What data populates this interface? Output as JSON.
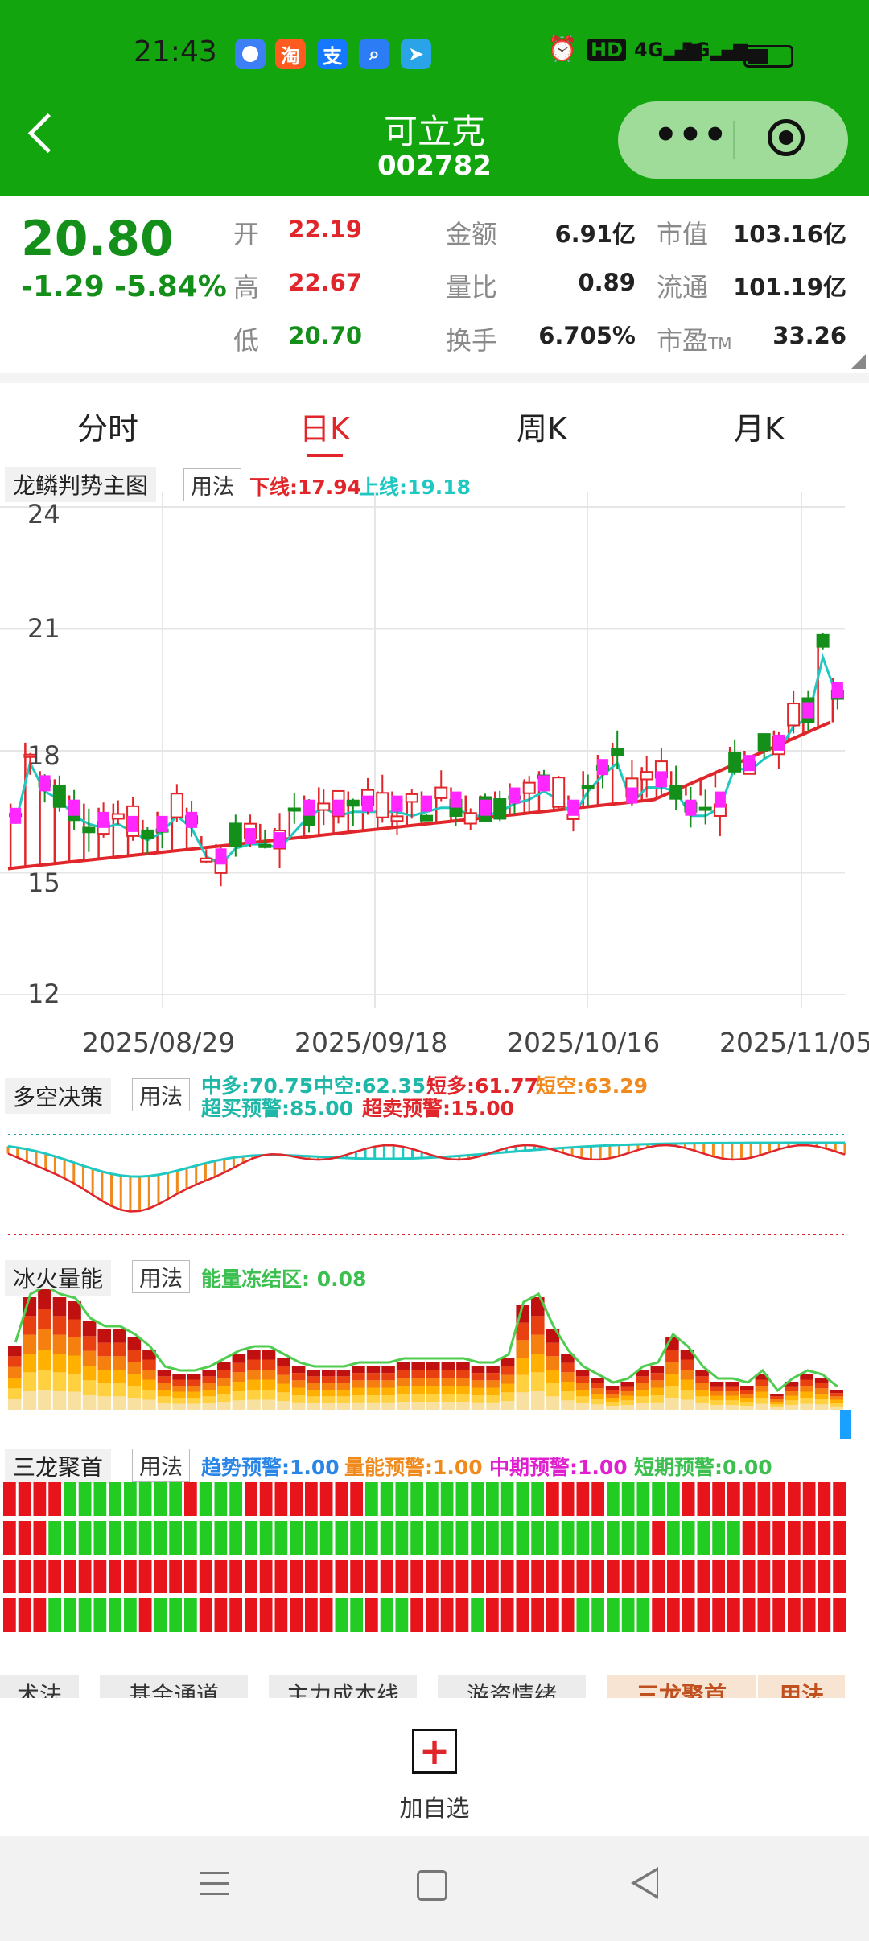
{
  "status": {
    "time": "21:43",
    "app_icons": [
      "淘",
      "支"
    ],
    "signal_labels": [
      "HD",
      "4G",
      "5G"
    ]
  },
  "header": {
    "name": "可立克",
    "code": "002782"
  },
  "quote": {
    "price": "20.80",
    "change": "-1.29",
    "pct": "-5.84%",
    "rows": [
      [
        {
          "label": "开",
          "value": "22.19",
          "color": "red"
        },
        {
          "label": "金额",
          "value": "6.91亿"
        },
        {
          "label": "市值",
          "value": "103.16亿"
        }
      ],
      [
        {
          "label": "高",
          "value": "22.67",
          "color": "red"
        },
        {
          "label": "量比",
          "value": "0.89"
        },
        {
          "label": "流通",
          "value": "101.19亿"
        }
      ],
      [
        {
          "label": "低",
          "value": "20.70",
          "color": "green"
        },
        {
          "label": "换手",
          "value": "6.705%"
        },
        {
          "label": "市盈",
          "sub": "TM",
          "value": "33.26"
        }
      ]
    ]
  },
  "tabs": [
    {
      "label": "分时"
    },
    {
      "label": "日K",
      "active": true
    },
    {
      "label": "周K"
    },
    {
      "label": "月K"
    }
  ],
  "main_chart": {
    "label": "龙鳞判势主图",
    "usage": "用法",
    "lower": "下线:17.94",
    "upper": "上线:19.18"
  },
  "duokong": {
    "label": "多空决策",
    "usage": "用法",
    "legend": [
      "中多:70.75",
      "中空:62.35",
      "短多:61.77",
      "短空:63.29",
      "超买预警:85.00",
      "超卖预警:15.00"
    ]
  },
  "bingfire": {
    "label": "冰火量能",
    "usage": "用法",
    "legend": "能量冻结区: 0.08"
  },
  "sanlong": {
    "label": "三龙聚首",
    "usage": "用法",
    "legend": [
      "趋势预警:1.00",
      "量能预警:1.00",
      "中期预警:1.00",
      "短期预警:0.00"
    ]
  },
  "bottom_tabs": [
    "术法",
    "基金通道",
    "主力成本线",
    "游资情绪",
    "三龙聚首",
    "用法"
  ],
  "add_watchlist": {
    "label": "加自选"
  },
  "colors": {
    "up": "#e0262a",
    "down": "#138f1a",
    "header": "#12a50e",
    "cyan": "#1fc8c0",
    "magenta": "#ff26ff",
    "orange": "#f08a1c"
  },
  "chart_data": {
    "type": "candlestick",
    "yticks": [
      "24",
      "21",
      "18",
      "15",
      "12"
    ],
    "ylim": [
      12,
      24
    ],
    "xticks": [
      "2025/08/29",
      "2025/09/18",
      "2025/10/16",
      "2025/11/05"
    ],
    "lower_line": 17.94,
    "upper_line": 19.18
  }
}
